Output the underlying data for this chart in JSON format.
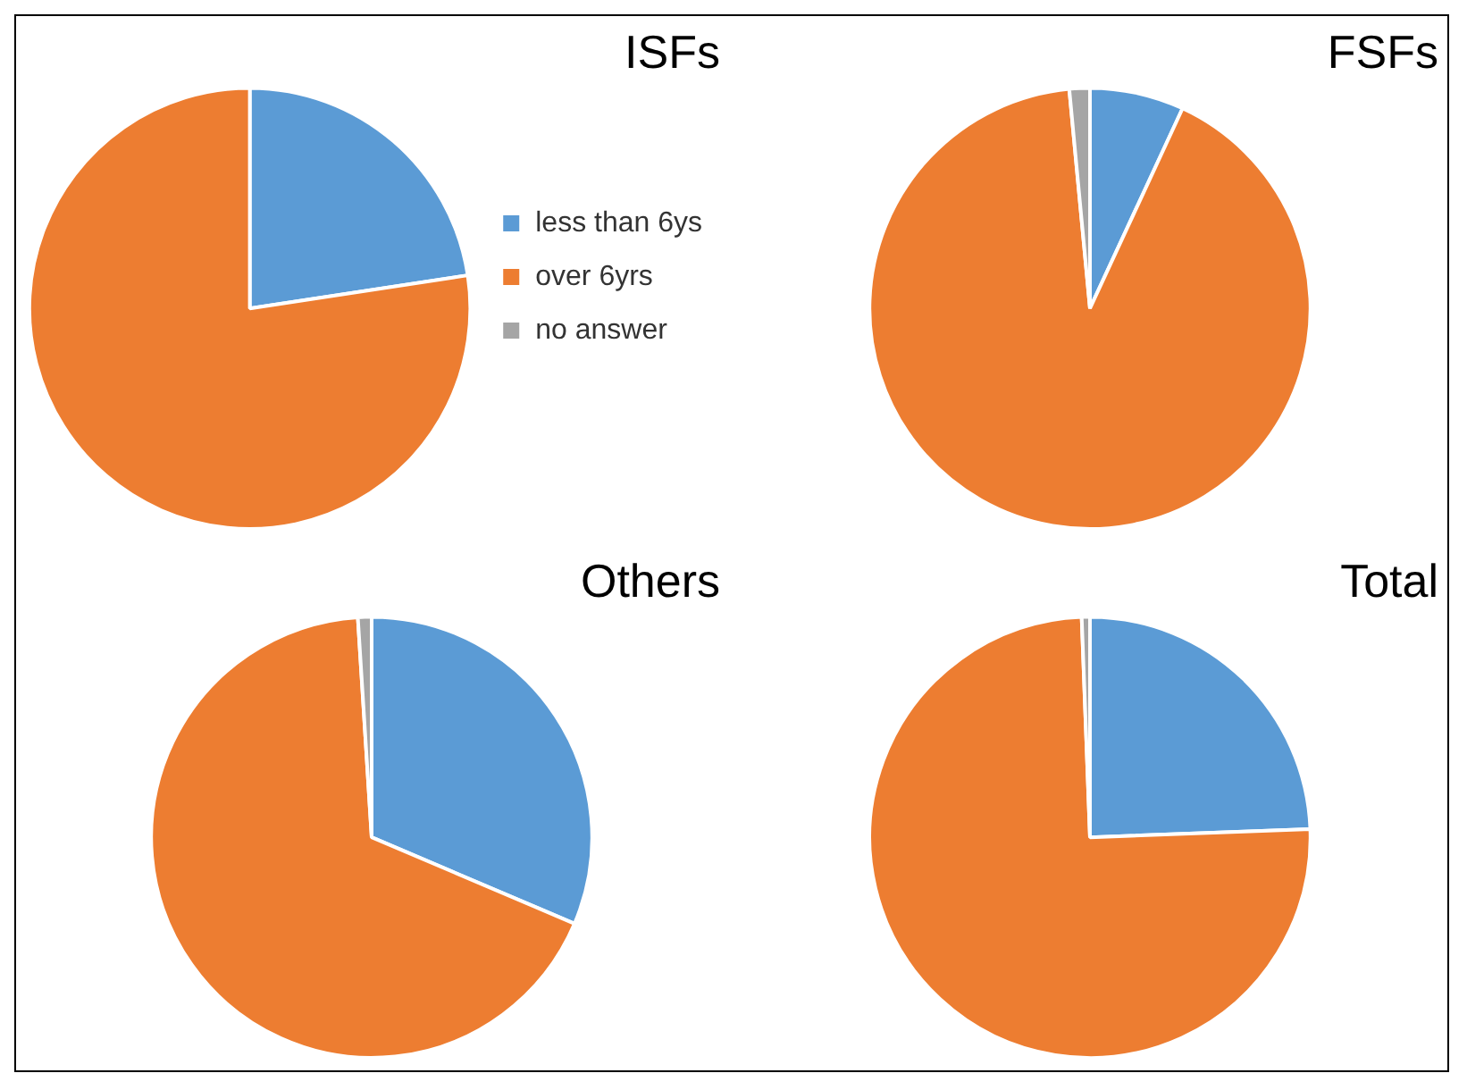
{
  "chart_data": [
    {
      "type": "pie",
      "title": "ISFs",
      "categories": [
        "less than 6ys",
        "over 6yrs",
        "no answer"
      ],
      "values": [
        22.6,
        77.4,
        0
      ],
      "colors": [
        "#5b9bd5",
        "#ed7d31",
        "#a5a5a5"
      ],
      "legend": "right"
    },
    {
      "type": "pie",
      "title": "FSFs",
      "categories": [
        null,
        null,
        null
      ],
      "values": [
        6.9,
        91.6,
        1.5
      ],
      "colors": [
        "#5b9bd5",
        "#ed7d31",
        "#a5a5a5"
      ]
    },
    {
      "type": "pie",
      "title": "Others",
      "categories": [
        null,
        null,
        null
      ],
      "values": [
        31.4,
        67.6,
        1.0
      ],
      "colors": [
        "#5b9bd5",
        "#ed7d31",
        "#a5a5a5"
      ]
    },
    {
      "type": "pie",
      "title": "Total",
      "categories": [
        null,
        null,
        null
      ],
      "values": [
        24.4,
        75.0,
        0.6
      ],
      "colors": [
        "#5b9bd5",
        "#ed7d31",
        "#a5a5a5"
      ]
    }
  ]
}
